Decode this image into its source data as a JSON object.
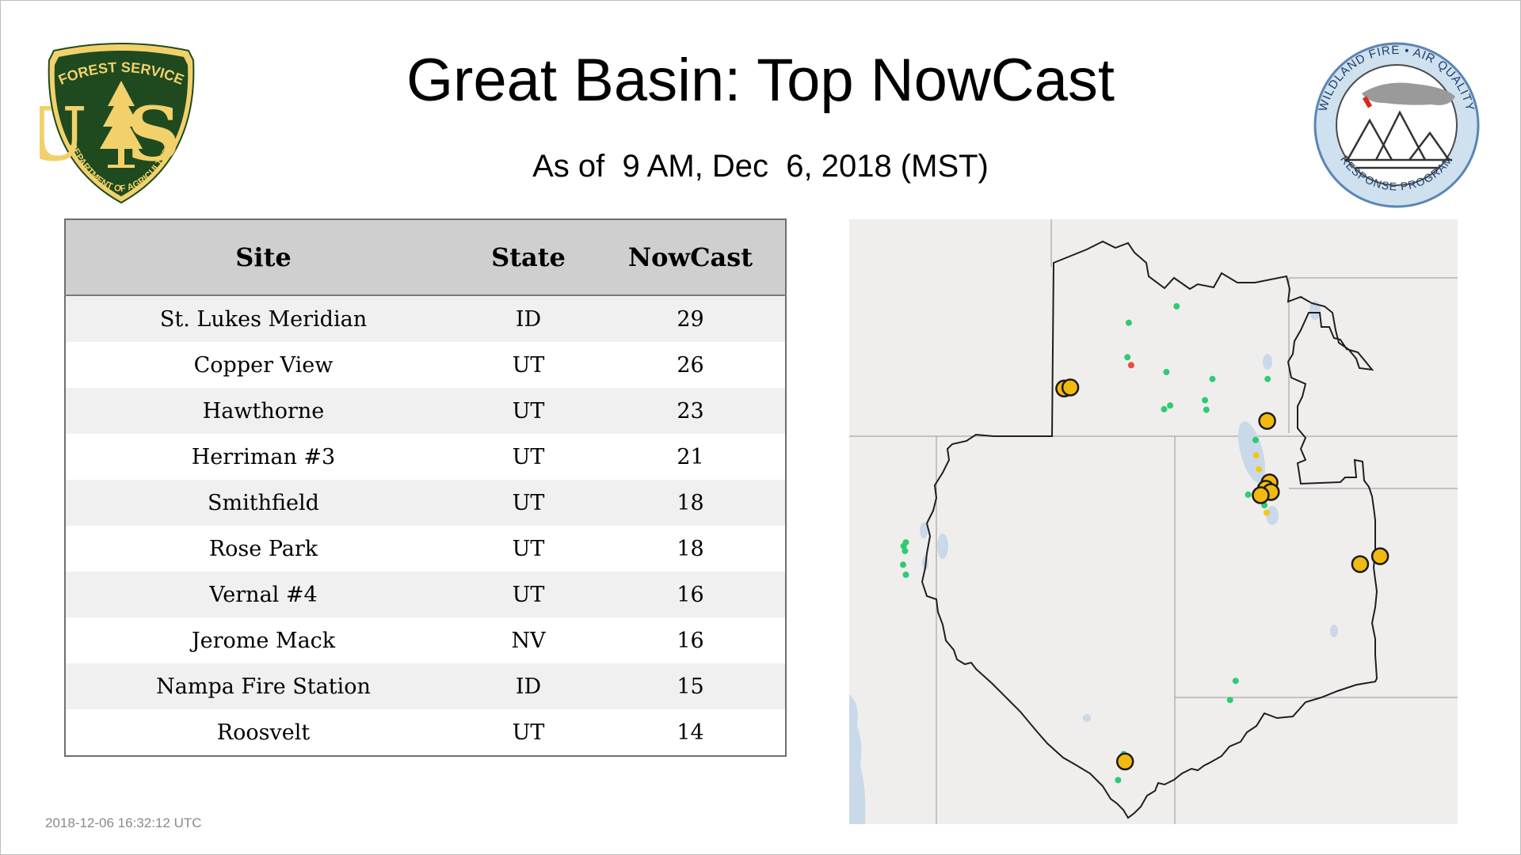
{
  "title": "Great Basin: Top NowCast",
  "subtitle": "As of  9 AM, Dec  6, 2018 (MST)",
  "logos": {
    "usfs": {
      "top_text": "FOREST SERVICE",
      "letters": "US",
      "bottom_text": "DEPARTMENT OF AGRICULTURE",
      "shield_color": "#1f4a1f",
      "accent_color": "#f2d16b"
    },
    "wfarp": {
      "top_text": "WILDLAND FIRE • AIR QUALITY",
      "bottom_text": "RESPONSE PROGRAM",
      "ring_color": "#cfe0ef",
      "border_color": "#5b86b5"
    }
  },
  "table": {
    "headers": {
      "site": "Site",
      "state": "State",
      "nowcast": "NowCast"
    },
    "rows": [
      {
        "site": "St. Lukes Meridian",
        "state": "ID",
        "nowcast": "29"
      },
      {
        "site": "Copper View",
        "state": "UT",
        "nowcast": "26"
      },
      {
        "site": "Hawthorne",
        "state": "UT",
        "nowcast": "23"
      },
      {
        "site": "Herriman #3",
        "state": "UT",
        "nowcast": "21"
      },
      {
        "site": "Smithfield",
        "state": "UT",
        "nowcast": "18"
      },
      {
        "site": "Rose Park",
        "state": "UT",
        "nowcast": "18"
      },
      {
        "site": "Vernal #4",
        "state": "UT",
        "nowcast": "16"
      },
      {
        "site": "Jerome Mack",
        "state": "NV",
        "nowcast": "16"
      },
      {
        "site": "Nampa Fire Station",
        "state": "ID",
        "nowcast": "15"
      },
      {
        "site": "Roosvelt",
        "state": "UT",
        "nowcast": "14"
      }
    ]
  },
  "map": {
    "colors": {
      "good": "#2ecc71",
      "moderate": "#f5c518",
      "unhealthy_sensitive": "#e74c3c",
      "land": "#f0eded",
      "water": "#c9d9ea",
      "top_site_fill": "#f2b90f"
    },
    "monitors": [
      {
        "lon": -114.98,
        "lat": 44.85,
        "level": "good"
      },
      {
        "lon": -113.95,
        "lat": 45.16,
        "level": "good"
      },
      {
        "lon": -115.01,
        "lat": 44.2,
        "level": "good"
      },
      {
        "lon": -114.93,
        "lat": 44.05,
        "level": "unhealthy_sensitive"
      },
      {
        "lon": -114.17,
        "lat": 43.92,
        "level": "good"
      },
      {
        "lon": -113.18,
        "lat": 43.79,
        "level": "good"
      },
      {
        "lon": -111.99,
        "lat": 43.79,
        "level": "good"
      },
      {
        "lon": -114.09,
        "lat": 43.29,
        "level": "good"
      },
      {
        "lon": -114.22,
        "lat": 43.22,
        "level": "good"
      },
      {
        "lon": -113.34,
        "lat": 43.39,
        "level": "good"
      },
      {
        "lon": -113.31,
        "lat": 43.21,
        "level": "good"
      },
      {
        "lon": -112.25,
        "lat": 42.64,
        "level": "good"
      },
      {
        "lon": -112.24,
        "lat": 42.35,
        "level": "moderate"
      },
      {
        "lon": -112.18,
        "lat": 42.09,
        "level": "moderate"
      },
      {
        "lon": -112.14,
        "lat": 41.77,
        "level": "good"
      },
      {
        "lon": -112.41,
        "lat": 41.61,
        "level": "good"
      },
      {
        "lon": -112.06,
        "lat": 41.41,
        "level": "good"
      },
      {
        "lon": -112.01,
        "lat": 41.27,
        "level": "moderate"
      },
      {
        "lon": -119.78,
        "lat": 40.71,
        "level": "good"
      },
      {
        "lon": -119.83,
        "lat": 40.64,
        "level": "good"
      },
      {
        "lon": -119.8,
        "lat": 40.55,
        "level": "good"
      },
      {
        "lon": -119.84,
        "lat": 40.29,
        "level": "good"
      },
      {
        "lon": -119.78,
        "lat": 40.1,
        "level": "good"
      },
      {
        "lon": -112.68,
        "lat": 38.1,
        "level": "good"
      },
      {
        "lon": -112.8,
        "lat": 37.74,
        "level": "good"
      },
      {
        "lon": -115.09,
        "lat": 36.72,
        "level": "good"
      },
      {
        "lon": -115.21,
        "lat": 36.23,
        "level": "good"
      }
    ],
    "top_sites": [
      {
        "lon": -116.37,
        "lat": 43.61
      },
      {
        "lon": -116.24,
        "lat": 43.63
      },
      {
        "lon": -112.0,
        "lat": 43.0
      },
      {
        "lon": -111.95,
        "lat": 41.84
      },
      {
        "lon": -112.03,
        "lat": 41.72
      },
      {
        "lon": -111.92,
        "lat": 41.66
      },
      {
        "lon": -112.14,
        "lat": 41.6
      },
      {
        "lon": -109.57,
        "lat": 40.45
      },
      {
        "lon": -110.0,
        "lat": 40.3
      },
      {
        "lon": -115.06,
        "lat": 36.58
      }
    ]
  },
  "timestamp": "2018-12-06 16:32:12 UTC"
}
